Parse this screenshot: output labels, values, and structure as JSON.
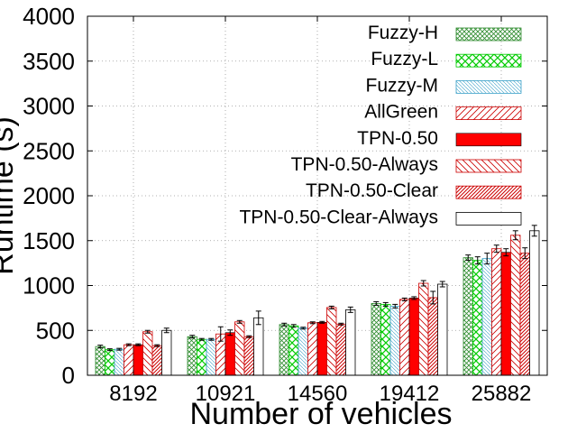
{
  "chart_data": {
    "type": "bar",
    "xlabel": "Number of vehicles",
    "ylabel": "Runtime (s)",
    "categories": [
      "8192",
      "10921",
      "14560",
      "19412",
      "25882"
    ],
    "ylim": [
      0,
      4000
    ],
    "yticks": [
      "0",
      "500",
      "1000",
      "1500",
      "2000",
      "2500",
      "3000",
      "3500",
      "4000"
    ],
    "grid": true,
    "legend_position": "top-right",
    "series": [
      {
        "name": "Fuzzy-H",
        "values": [
          320,
          430,
          565,
          800,
          1310
        ],
        "errors": [
          15,
          15,
          15,
          20,
          30
        ],
        "pattern": "crosshatch-fine",
        "color": "#2e8b2e"
      },
      {
        "name": "Fuzzy-L",
        "values": [
          285,
          400,
          550,
          790,
          1280
        ],
        "errors": [
          10,
          10,
          15,
          20,
          40
        ],
        "pattern": "crosshatch-coarse",
        "color": "#00cc00"
      },
      {
        "name": "Fuzzy-M",
        "values": [
          290,
          400,
          525,
          770,
          1300
        ],
        "errors": [
          10,
          10,
          10,
          20,
          60
        ],
        "pattern": "hatch-back-fine",
        "color": "#3aa0c8"
      },
      {
        "name": "AllGreen",
        "values": [
          340,
          460,
          585,
          845,
          1410
        ],
        "errors": [
          10,
          80,
          10,
          15,
          40
        ],
        "pattern": "hatch-forward",
        "color": "#cc0000"
      },
      {
        "name": "TPN-0.50",
        "values": [
          340,
          475,
          590,
          860,
          1370
        ],
        "errors": [
          10,
          30,
          10,
          15,
          40
        ],
        "pattern": "solid",
        "color": "#ff0000"
      },
      {
        "name": "TPN-0.50-Always",
        "values": [
          485,
          595,
          755,
          1025,
          1560
        ],
        "errors": [
          15,
          15,
          15,
          30,
          50
        ],
        "pattern": "hatch-back",
        "color": "#cc0000"
      },
      {
        "name": "TPN-0.50-Clear",
        "values": [
          330,
          430,
          570,
          865,
          1360
        ],
        "errors": [
          10,
          10,
          10,
          70,
          60
        ],
        "pattern": "hatch-forward-dense",
        "color": "#cc0000"
      },
      {
        "name": "TPN-0.50-Clear-Always",
        "values": [
          500,
          640,
          730,
          1015,
          1610
        ],
        "errors": [
          25,
          75,
          30,
          30,
          60
        ],
        "pattern": "none",
        "color": "#000000"
      }
    ]
  }
}
